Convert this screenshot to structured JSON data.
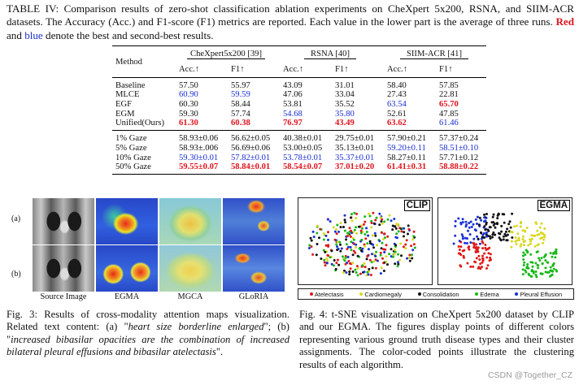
{
  "table_caption": {
    "line1": "TABLE IV: Comparison results of zero-shot classification ablation experiments on CheXpert 5x200, RSNA, and SIIM-ACR datasets. The Accuracy (Acc.) and F1-score (F1) metrics are reported. Each value in the lower part is the average of three runs.",
    "red_word": "Red",
    "and_word": "and",
    "blue_word": "blue",
    "tail": "denote the best and second-best results."
  },
  "table": {
    "method_header": "Method",
    "datasets": [
      "CheXpert5x200 [39]",
      "RSNA [40]",
      "SIIM-ACR [41]"
    ],
    "metrics": [
      "Acc.↑",
      "F1↑"
    ],
    "upper_rows": [
      {
        "method": "Baseline",
        "values": [
          "57.50",
          "55.97",
          "43.09",
          "31.01",
          "58.40",
          "57.85"
        ],
        "styles": [
          "",
          "",
          "",
          "",
          "",
          ""
        ]
      },
      {
        "method": "MLCE",
        "values": [
          "60.90",
          "59.59",
          "47.06",
          "33.04",
          "27.43",
          "22.81"
        ],
        "styles": [
          "blue",
          "blue",
          "",
          "",
          "",
          ""
        ]
      },
      {
        "method": "EGF",
        "values": [
          "60.30",
          "58.44",
          "53.81",
          "35.52",
          "63.54",
          "65.70"
        ],
        "styles": [
          "",
          "",
          "",
          "",
          "blue",
          "red"
        ]
      },
      {
        "method": "EGM",
        "values": [
          "59.30",
          "57.74",
          "54.68",
          "35.80",
          "52.61",
          "47.85"
        ],
        "styles": [
          "",
          "",
          "blue",
          "blue",
          "",
          ""
        ]
      },
      {
        "method": "Unified(Ours)",
        "values": [
          "61.30",
          "60.38",
          "76.97",
          "43.49",
          "63.62",
          "61.46"
        ],
        "styles": [
          "red",
          "red",
          "red",
          "red",
          "red",
          "blue"
        ]
      }
    ],
    "lower_rows": [
      {
        "method": "1% Gaze",
        "values": [
          "58.93±0.06",
          "56.62±0.05",
          "40.38±0.01",
          "29.75±0.01",
          "57.90±0.21",
          "57.37±0.24"
        ],
        "styles": [
          "",
          "",
          "",
          "",
          "",
          ""
        ]
      },
      {
        "method": "5% Gaze",
        "values": [
          "58.93±.006",
          "56.69±0.06",
          "53.00±0.05",
          "35.13±0.01",
          "59.20±0.11",
          "58.51±0.10"
        ],
        "styles": [
          "",
          "",
          "",
          "",
          "blue",
          "blue"
        ]
      },
      {
        "method": "10% Gaze",
        "values": [
          "59.30±0.01",
          "57.82±0.01",
          "53.78±0.01",
          "35.37±0.01",
          "58.27±0.11",
          "57.71±0.12"
        ],
        "styles": [
          "blue",
          "blue",
          "blue",
          "blue",
          "",
          ""
        ]
      },
      {
        "method": "50% Gaze",
        "values": [
          "59.55±0.07",
          "58.84±0.01",
          "58.54±0.07",
          "37.01±0.20",
          "61.41±0.31",
          "58.88±0.22"
        ],
        "styles": [
          "red",
          "red",
          "red",
          "red",
          "red",
          "red"
        ]
      }
    ]
  },
  "fig3": {
    "row_labels": [
      "(a)",
      "(b)"
    ],
    "column_labels": [
      "Source Image",
      "EGMA",
      "MGCA",
      "GLoRIA"
    ],
    "caption_prefix": "Fig. 3: Results of cross-modality attention maps visualization. Related text content: (a) \"",
    "quote_a": "heart size borderline enlarged",
    "caption_mid": "\"; (b) \"",
    "quote_b": "increased bibasilar opacities are the combination of increased bilateral pleural effusions and bibasilar atelectasis",
    "caption_suffix": "\"."
  },
  "fig4": {
    "panel_labels": [
      "CLIP",
      "EGMA"
    ],
    "legend": [
      {
        "label": "Atelectasis",
        "color": "#e01818"
      },
      {
        "label": "Cardiomegaly",
        "color": "#d8d820"
      },
      {
        "label": "Consolidation",
        "color": "#111111"
      },
      {
        "label": "Edema",
        "color": "#18b818"
      },
      {
        "label": "Pleural Effusion",
        "color": "#1830d8"
      }
    ],
    "caption": "Fig. 4: t-SNE visualization on CheXpert 5x200 dataset by CLIP and our EGMA. The figures display points of different colors representing various ground truth disease types and their cluster assignments. The color-coded points illustrate the clustering results of each algorithm."
  },
  "watermark": "CSDN @Together_CZ"
}
